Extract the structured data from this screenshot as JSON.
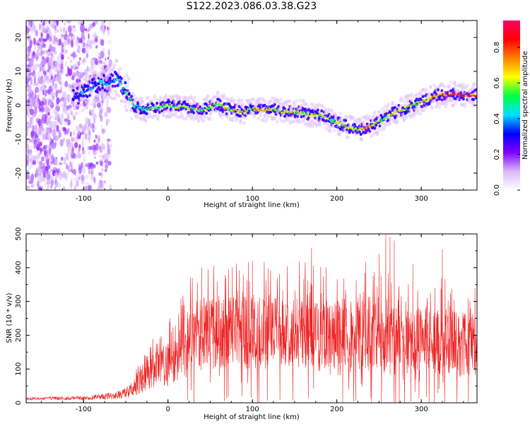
{
  "title": "S122.2023.086.03.38.G23",
  "colors": {
    "snr_line": "#ee2222",
    "frame": "#000000"
  },
  "chart_data": [
    {
      "type": "heatmap",
      "title": "",
      "xlabel": "Height of straight line (km)",
      "ylabel": "Frequency (Hz)",
      "xlim": [
        -168,
        366
      ],
      "ylim": [
        -25,
        25
      ],
      "xticks": [
        -100,
        0,
        100,
        200,
        300
      ],
      "yticks": [
        -20,
        -10,
        0,
        10,
        20
      ],
      "colorbar": {
        "label": "Normalized spectral amplitude",
        "ticks": [
          0.0,
          0.2,
          0.4,
          0.6,
          0.8
        ],
        "labels": [
          "0.0",
          "0.2",
          "0.4",
          "0.6",
          "0.8"
        ],
        "range": [
          0,
          0.95
        ],
        "colormap": [
          "#ffffff",
          "#d8b8ff",
          "#8000ff",
          "#0000ff",
          "#00e0ff",
          "#00ff40",
          "#ffff00",
          "#ff8000",
          "#ff0000",
          "#ff0066"
        ]
      },
      "ridge": {
        "x": [
          -110,
          -100,
          -90,
          -80,
          -70,
          -60,
          -50,
          -40,
          -30,
          -20,
          -10,
          0,
          10,
          20,
          30,
          40,
          50,
          60,
          70,
          80,
          90,
          100,
          110,
          120,
          130,
          140,
          150,
          160,
          170,
          180,
          190,
          200,
          210,
          220,
          230,
          240,
          250,
          260,
          270,
          280,
          290,
          300,
          310,
          320,
          330,
          340,
          350,
          360,
          366
        ],
        "y": [
          2,
          4,
          5,
          7,
          6,
          8,
          4,
          0,
          -1,
          -1,
          -0.5,
          0,
          -0.5,
          -0.5,
          -1,
          -1.5,
          -0.5,
          0.5,
          -1,
          -1.5,
          -2,
          -1,
          -1.5,
          -1,
          -1.5,
          -2,
          -2,
          -2,
          -3,
          -3,
          -4,
          -5,
          -6,
          -7,
          -7,
          -6,
          -5,
          -3,
          -2,
          -1,
          0,
          1,
          2,
          3,
          3,
          3.5,
          3,
          3,
          3
        ]
      },
      "color_values": {
        "x": [
          -110,
          -60,
          -40,
          0,
          60,
          100,
          150,
          200,
          230,
          260,
          300,
          330,
          350,
          366
        ],
        "amp": [
          0.35,
          0.45,
          0.55,
          0.6,
          0.65,
          0.7,
          0.65,
          0.6,
          0.75,
          0.6,
          0.7,
          0.85,
          0.9,
          0.85
        ]
      }
    },
    {
      "type": "line",
      "title": "",
      "xlabel": "Height of straight line (km)",
      "ylabel": "SNR (10 * v/v)",
      "xlim": [
        -168,
        366
      ],
      "ylim": [
        0,
        500
      ],
      "xticks": [
        -100,
        0,
        100,
        200,
        300
      ],
      "yticks": [
        0,
        100,
        200,
        300,
        400,
        500
      ],
      "series": [
        {
          "envelope_x": [
            -168,
            -100,
            -70,
            -55,
            -45,
            -35,
            -20,
            0,
            20,
            30,
            50,
            100,
            150,
            200,
            250,
            280,
            300,
            330,
            366
          ],
          "envelope_mean": [
            12,
            14,
            20,
            25,
            35,
            60,
            90,
            120,
            160,
            200,
            210,
            210,
            210,
            200,
            200,
            180,
            190,
            180,
            170
          ],
          "envelope_spread": [
            4,
            6,
            10,
            12,
            20,
            35,
            50,
            70,
            90,
            110,
            110,
            110,
            110,
            110,
            120,
            100,
            100,
            100,
            90
          ],
          "peaks": [
            {
              "x": 258,
              "y": 498
            },
            {
              "x": 263,
              "y": 492
            },
            {
              "x": 268,
              "y": 480
            },
            {
              "x": 250,
              "y": 440
            },
            {
              "x": 170,
              "y": 458
            },
            {
              "x": 325,
              "y": 455
            },
            {
              "x": 290,
              "y": 410
            },
            {
              "x": 100,
              "y": 420
            },
            {
              "x": 40,
              "y": 400
            }
          ]
        }
      ]
    }
  ]
}
